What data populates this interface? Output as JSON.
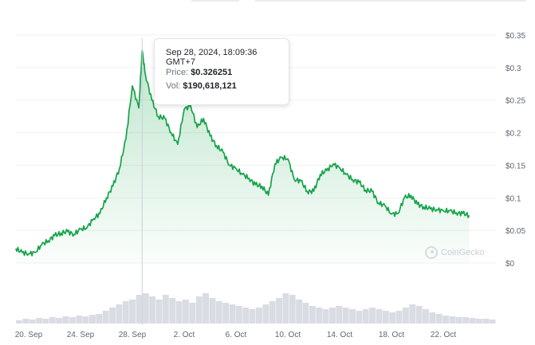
{
  "chart_data": {
    "type": "line",
    "y_ticks": [
      "$0.35",
      "$0.3",
      "$0.25",
      "$0.2",
      "$0.15",
      "$0.1",
      "$0.05",
      "$0"
    ],
    "x_ticks": [
      "20. Sep",
      "24. Sep",
      "28. Sep",
      "2. Oct",
      "6. Oct",
      "10. Oct",
      "14. Oct",
      "18. Oct",
      "22. Oct"
    ],
    "ylim": [
      0,
      0.35
    ],
    "grid": true,
    "line_color": "#16a34a",
    "series": [
      {
        "values": [
          [
            "2024-09-19 00:00",
            0.022
          ],
          [
            "2024-09-19 12:00",
            0.016
          ],
          [
            "2024-09-20 00:00",
            0.014
          ],
          [
            "2024-09-20 12:00",
            0.016
          ],
          [
            "2024-09-21 00:00",
            0.028
          ],
          [
            "2024-09-21 12:00",
            0.034
          ],
          [
            "2024-09-22 00:00",
            0.042
          ],
          [
            "2024-09-22 12:00",
            0.046
          ],
          [
            "2024-09-23 00:00",
            0.048
          ],
          [
            "2024-09-23 12:00",
            0.044
          ],
          [
            "2024-09-24 00:00",
            0.052
          ],
          [
            "2024-09-24 12:00",
            0.054
          ],
          [
            "2024-09-25 00:00",
            0.068
          ],
          [
            "2024-09-25 12:00",
            0.076
          ],
          [
            "2024-09-26 00:00",
            0.1
          ],
          [
            "2024-09-26 12:00",
            0.118
          ],
          [
            "2024-09-27 00:00",
            0.145
          ],
          [
            "2024-09-27 12:00",
            0.19
          ],
          [
            "2024-09-28 00:00",
            0.272
          ],
          [
            "2024-09-28 12:00",
            0.238
          ],
          [
            "2024-09-28 18:09",
            0.326251
          ],
          [
            "2024-09-29 00:00",
            0.29
          ],
          [
            "2024-09-29 12:00",
            0.25
          ],
          [
            "2024-09-30 00:00",
            0.225
          ],
          [
            "2024-09-30 12:00",
            0.222
          ],
          [
            "2024-10-01 00:00",
            0.2
          ],
          [
            "2024-10-01 12:00",
            0.182
          ],
          [
            "2024-10-02 00:00",
            0.236
          ],
          [
            "2024-10-02 12:00",
            0.242
          ],
          [
            "2024-10-03 00:00",
            0.208
          ],
          [
            "2024-10-03 12:00",
            0.222
          ],
          [
            "2024-10-04 00:00",
            0.195
          ],
          [
            "2024-10-04 12:00",
            0.18
          ],
          [
            "2024-10-05 00:00",
            0.17
          ],
          [
            "2024-10-05 12:00",
            0.15
          ],
          [
            "2024-10-06 00:00",
            0.145
          ],
          [
            "2024-10-06 12:00",
            0.136
          ],
          [
            "2024-10-07 00:00",
            0.13
          ],
          [
            "2024-10-07 12:00",
            0.12
          ],
          [
            "2024-10-08 00:00",
            0.118
          ],
          [
            "2024-10-08 12:00",
            0.104
          ],
          [
            "2024-10-09 00:00",
            0.152
          ],
          [
            "2024-10-09 12:00",
            0.162
          ],
          [
            "2024-10-10 00:00",
            0.16
          ],
          [
            "2024-10-10 12:00",
            0.128
          ],
          [
            "2024-10-11 00:00",
            0.126
          ],
          [
            "2024-10-11 12:00",
            0.11
          ],
          [
            "2024-10-12 00:00",
            0.11
          ],
          [
            "2024-10-12 12:00",
            0.136
          ],
          [
            "2024-10-13 00:00",
            0.142
          ],
          [
            "2024-10-13 12:00",
            0.152
          ],
          [
            "2024-10-14 00:00",
            0.146
          ],
          [
            "2024-10-14 12:00",
            0.136
          ],
          [
            "2024-10-15 00:00",
            0.128
          ],
          [
            "2024-10-15 12:00",
            0.124
          ],
          [
            "2024-10-16 00:00",
            0.112
          ],
          [
            "2024-10-16 12:00",
            0.11
          ],
          [
            "2024-10-17 00:00",
            0.092
          ],
          [
            "2024-10-17 12:00",
            0.088
          ],
          [
            "2024-10-18 00:00",
            0.075
          ],
          [
            "2024-10-18 12:00",
            0.076
          ],
          [
            "2024-10-19 00:00",
            0.1
          ],
          [
            "2024-10-19 12:00",
            0.104
          ],
          [
            "2024-10-20 00:00",
            0.09
          ],
          [
            "2024-10-20 12:00",
            0.086
          ],
          [
            "2024-10-21 00:00",
            0.083
          ],
          [
            "2024-10-21 12:00",
            0.082
          ],
          [
            "2024-10-22 00:00",
            0.08
          ],
          [
            "2024-10-22 12:00",
            0.08
          ],
          [
            "2024-10-23 00:00",
            0.077
          ],
          [
            "2024-10-23 12:00",
            0.076
          ],
          [
            "2024-10-24 00:00",
            0.073
          ]
        ]
      }
    ],
    "volume": [
      4,
      6,
      5,
      7,
      6,
      8,
      7,
      9,
      8,
      10,
      9,
      11,
      12,
      16,
      20,
      24,
      28,
      30,
      36,
      38,
      34,
      30,
      36,
      32,
      28,
      30,
      26,
      34,
      38,
      32,
      28,
      26,
      24,
      22,
      20,
      18,
      20,
      24,
      28,
      32,
      38,
      36,
      30,
      26,
      22,
      20,
      18,
      20,
      22,
      20,
      18,
      16,
      18,
      20,
      18,
      16,
      14,
      16,
      20,
      24,
      22,
      18,
      14,
      12,
      10,
      9,
      8,
      8,
      7,
      6,
      6,
      5
    ],
    "hover": {
      "date": "Sep 28, 2024, 18:09:36 GMT+7",
      "price_label": "Price:",
      "price_value": "$0.326251",
      "vol_label": "Vol:",
      "vol_value": "$190,618,121"
    },
    "watermark": "CoinGecko"
  }
}
